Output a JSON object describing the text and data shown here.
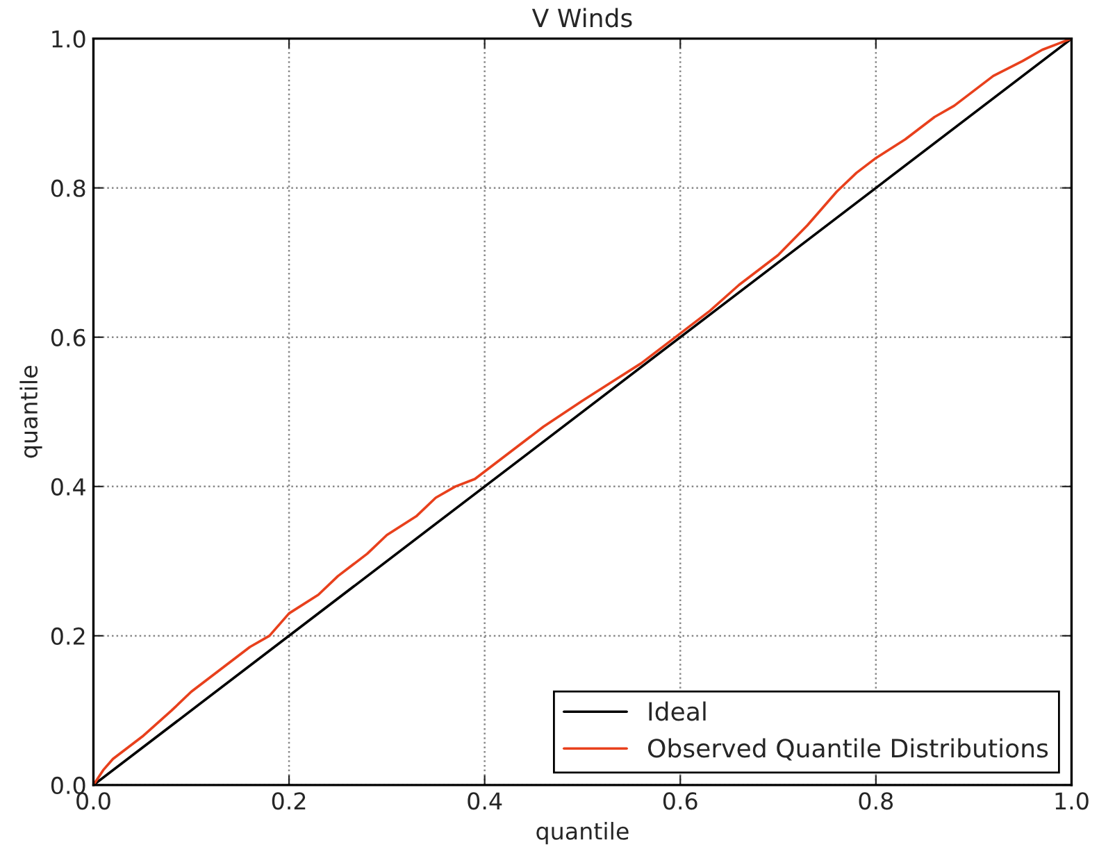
{
  "chart_data": {
    "type": "line",
    "title": "V Winds",
    "xlabel": "quantile",
    "ylabel": "quantile",
    "xlim": [
      0.0,
      1.0
    ],
    "ylim": [
      0.0,
      1.0
    ],
    "xticks": [
      {
        "value": 0,
        "label": "0.0"
      },
      0.2,
      0.4,
      0.6,
      0.8,
      {
        "value": 1,
        "label": "1.0"
      }
    ],
    "yticks": [
      {
        "value": 0,
        "label": "0.0"
      },
      0.2,
      0.4,
      0.6,
      0.8,
      {
        "value": 1,
        "label": "1.0"
      }
    ],
    "grid": true,
    "legend": "bottom right",
    "series": [
      {
        "name": "Ideal",
        "color": "#000000",
        "x": [
          0,
          1
        ],
        "values": [
          0,
          1
        ]
      },
      {
        "name": "Observed Quantile Distributions",
        "color": "#e8401c",
        "x": [
          0,
          0.01,
          0.02,
          0.03,
          0.05,
          0.08,
          0.1,
          0.13,
          0.16,
          0.18,
          0.2,
          0.23,
          0.25,
          0.28,
          0.3,
          0.33,
          0.35,
          0.37,
          0.39,
          0.4,
          0.43,
          0.46,
          0.5,
          0.53,
          0.56,
          0.6,
          0.63,
          0.66,
          0.7,
          0.73,
          0.76,
          0.78,
          0.8,
          0.83,
          0.86,
          0.88,
          0.9,
          0.92,
          0.95,
          0.97,
          0.99,
          1.0
        ],
        "values": [
          0,
          0.02,
          0.035,
          0.045,
          0.065,
          0.1,
          0.125,
          0.155,
          0.185,
          0.2,
          0.23,
          0.255,
          0.28,
          0.31,
          0.335,
          0.36,
          0.385,
          0.4,
          0.41,
          0.42,
          0.45,
          0.48,
          0.515,
          0.54,
          0.565,
          0.605,
          0.635,
          0.67,
          0.71,
          0.75,
          0.795,
          0.82,
          0.84,
          0.865,
          0.895,
          0.91,
          0.93,
          0.95,
          0.97,
          0.985,
          0.995,
          1.0
        ]
      }
    ]
  }
}
